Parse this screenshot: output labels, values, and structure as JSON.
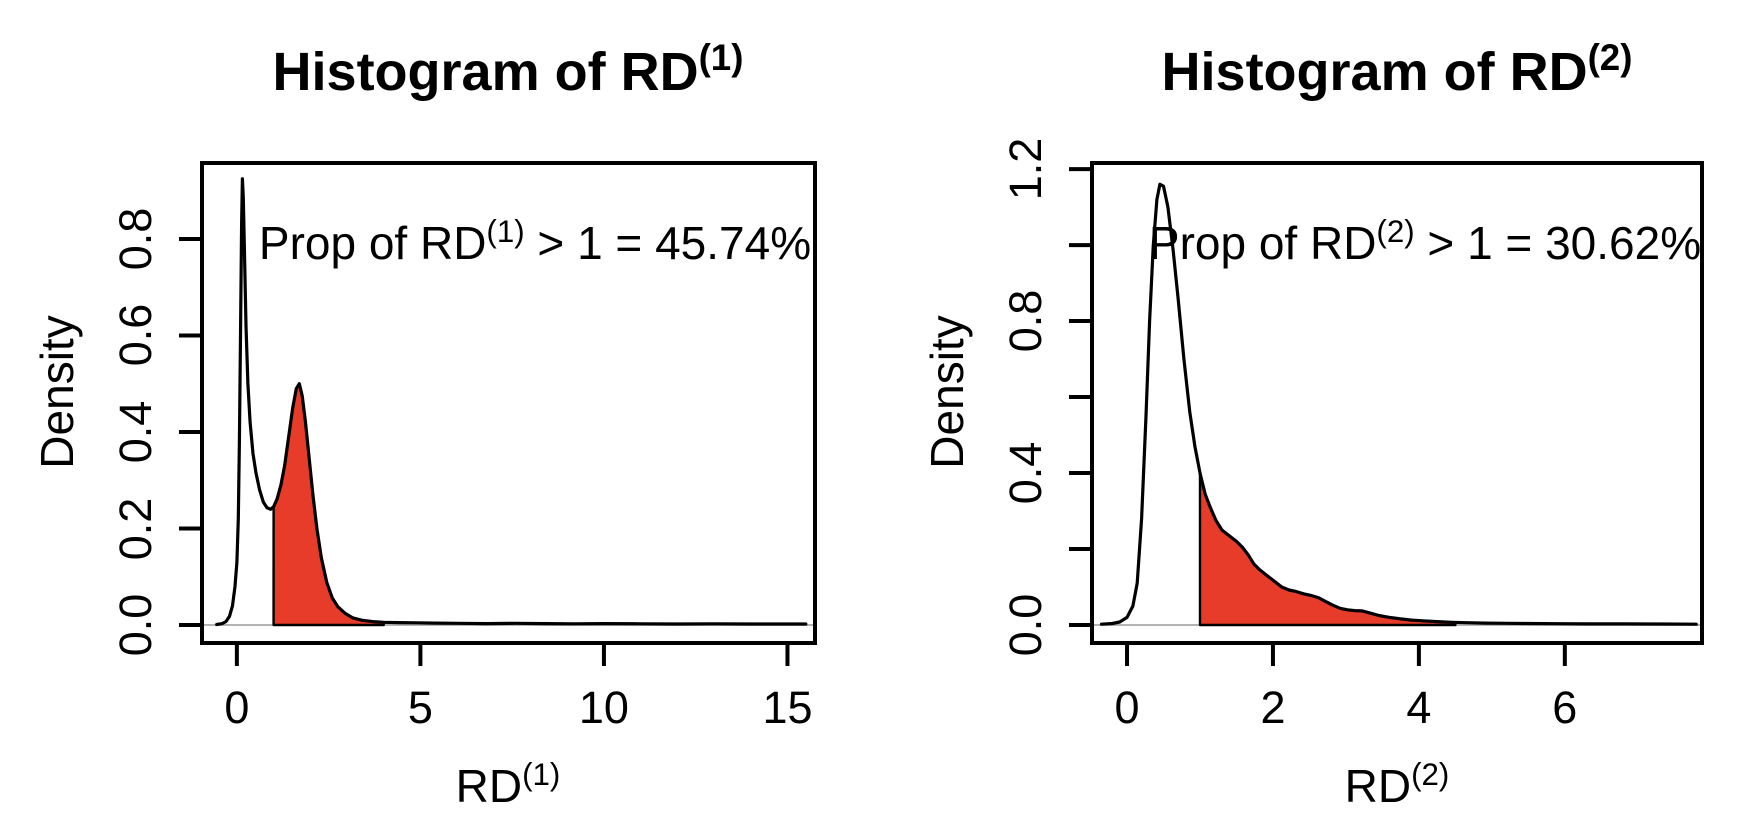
{
  "figure_title": "",
  "chart_data": [
    {
      "type": "area",
      "title": {
        "text": "Histogram of RD",
        "sup": "(1)"
      },
      "xlabel": {
        "text": "RD",
        "sup": "(1)"
      },
      "ylabel": "Density",
      "annotation": {
        "pre": "Prop of RD",
        "sup": "(1)",
        "post": " > 1 = 45.74%"
      },
      "proportion_gt_1_percent": 45.74,
      "threshold": 1,
      "xlim": [
        -0.95,
        15.75
      ],
      "ylim": [
        -0.0373,
        0.9575
      ],
      "x_ticks": [
        {
          "v": 0,
          "label": "0"
        },
        {
          "v": 5,
          "label": "5"
        },
        {
          "v": 10,
          "label": "10"
        },
        {
          "v": 15,
          "label": "15"
        }
      ],
      "y_ticks": [
        {
          "v": 0.0,
          "label": "0.0"
        },
        {
          "v": 0.2,
          "label": "0.2"
        },
        {
          "v": 0.4,
          "label": "0.4"
        },
        {
          "v": 0.6,
          "label": "0.6"
        },
        {
          "v": 0.8,
          "label": "0.8"
        }
      ],
      "grid": false,
      "legend": null,
      "fill_color": "#E83C2B",
      "line_color": "#000000",
      "zero_line_color": "#b3b3b3",
      "fill_from": 1.0,
      "fill_to": 4.0,
      "curve": [
        [
          -0.55,
          0.001
        ],
        [
          -0.4,
          0.003
        ],
        [
          -0.3,
          0.007
        ],
        [
          -0.2,
          0.018
        ],
        [
          -0.12,
          0.04
        ],
        [
          -0.05,
          0.08
        ],
        [
          0.0,
          0.13
        ],
        [
          0.04,
          0.22
        ],
        [
          0.07,
          0.38
        ],
        [
          0.1,
          0.6
        ],
        [
          0.13,
          0.83
        ],
        [
          0.15,
          0.925
        ],
        [
          0.175,
          0.885
        ],
        [
          0.21,
          0.76
        ],
        [
          0.25,
          0.62
        ],
        [
          0.3,
          0.5
        ],
        [
          0.36,
          0.42
        ],
        [
          0.44,
          0.355
        ],
        [
          0.52,
          0.315
        ],
        [
          0.62,
          0.28
        ],
        [
          0.72,
          0.255
        ],
        [
          0.82,
          0.243
        ],
        [
          0.92,
          0.24
        ],
        [
          1.0,
          0.245
        ],
        [
          1.1,
          0.262
        ],
        [
          1.2,
          0.29
        ],
        [
          1.3,
          0.33
        ],
        [
          1.42,
          0.395
        ],
        [
          1.52,
          0.45
        ],
        [
          1.62,
          0.49
        ],
        [
          1.7,
          0.5
        ],
        [
          1.78,
          0.475
        ],
        [
          1.87,
          0.42
        ],
        [
          1.97,
          0.345
        ],
        [
          2.07,
          0.27
        ],
        [
          2.18,
          0.2
        ],
        [
          2.3,
          0.14
        ],
        [
          2.45,
          0.088
        ],
        [
          2.6,
          0.056
        ],
        [
          2.75,
          0.038
        ],
        [
          2.95,
          0.024
        ],
        [
          3.15,
          0.015
        ],
        [
          3.4,
          0.01
        ],
        [
          3.7,
          0.007
        ],
        [
          4.0,
          0.0055
        ],
        [
          4.4,
          0.005
        ],
        [
          4.9,
          0.0045
        ],
        [
          5.4,
          0.004
        ],
        [
          6.0,
          0.0035
        ],
        [
          6.8,
          0.003
        ],
        [
          7.6,
          0.0035
        ],
        [
          8.4,
          0.003
        ],
        [
          9.2,
          0.0025
        ],
        [
          10.0,
          0.003
        ],
        [
          11.0,
          0.0025
        ],
        [
          12.0,
          0.002
        ],
        [
          13.0,
          0.0025
        ],
        [
          14.0,
          0.002
        ],
        [
          15.0,
          0.002
        ],
        [
          15.5,
          0.002
        ]
      ]
    },
    {
      "type": "area",
      "title": {
        "text": "Histogram of RD",
        "sup": "(2)"
      },
      "xlabel": {
        "text": "RD",
        "sup": "(2)"
      },
      "ylabel": "Density",
      "annotation": {
        "pre": "Prop of RD",
        "sup": "(2)",
        "post": " > 1 = 30.62%"
      },
      "proportion_gt_1_percent": 30.62,
      "threshold": 1,
      "xlim": [
        -0.48,
        7.88
      ],
      "ylim": [
        -0.0474,
        1.216
      ],
      "x_ticks": [
        {
          "v": 0,
          "label": "0"
        },
        {
          "v": 2,
          "label": "2"
        },
        {
          "v": 4,
          "label": "4"
        },
        {
          "v": 6,
          "label": "6"
        }
      ],
      "y_ticks": [
        {
          "v": 0.0,
          "label": "0.0"
        },
        {
          "v": 0.2,
          "label": ""
        },
        {
          "v": 0.4,
          "label": "0.4"
        },
        {
          "v": 0.6,
          "label": ""
        },
        {
          "v": 0.8,
          "label": "0.8"
        },
        {
          "v": 1.0,
          "label": ""
        },
        {
          "v": 1.2,
          "label": "1.2"
        }
      ],
      "grid": false,
      "legend": null,
      "fill_color": "#E83C2B",
      "line_color": "#000000",
      "zero_line_color": "#b3b3b3",
      "fill_from": 1.0,
      "fill_to": 4.5,
      "curve": [
        [
          -0.35,
          0.002
        ],
        [
          -0.2,
          0.004
        ],
        [
          -0.1,
          0.008
        ],
        [
          0.0,
          0.02
        ],
        [
          0.08,
          0.05
        ],
        [
          0.14,
          0.11
        ],
        [
          0.2,
          0.28
        ],
        [
          0.26,
          0.55
        ],
        [
          0.31,
          0.8
        ],
        [
          0.36,
          1.0
        ],
        [
          0.41,
          1.12
        ],
        [
          0.45,
          1.16
        ],
        [
          0.5,
          1.155
        ],
        [
          0.56,
          1.1
        ],
        [
          0.63,
          0.99
        ],
        [
          0.7,
          0.86
        ],
        [
          0.78,
          0.7
        ],
        [
          0.86,
          0.56
        ],
        [
          0.93,
          0.47
        ],
        [
          1.0,
          0.4
        ],
        [
          1.07,
          0.345
        ],
        [
          1.14,
          0.31
        ],
        [
          1.22,
          0.275
        ],
        [
          1.3,
          0.25
        ],
        [
          1.4,
          0.235
        ],
        [
          1.5,
          0.22
        ],
        [
          1.58,
          0.205
        ],
        [
          1.66,
          0.185
        ],
        [
          1.74,
          0.16
        ],
        [
          1.82,
          0.145
        ],
        [
          1.92,
          0.13
        ],
        [
          2.02,
          0.115
        ],
        [
          2.12,
          0.1
        ],
        [
          2.22,
          0.092
        ],
        [
          2.32,
          0.088
        ],
        [
          2.42,
          0.082
        ],
        [
          2.52,
          0.078
        ],
        [
          2.62,
          0.072
        ],
        [
          2.72,
          0.062
        ],
        [
          2.82,
          0.052
        ],
        [
          2.92,
          0.044
        ],
        [
          3.02,
          0.04
        ],
        [
          3.12,
          0.038
        ],
        [
          3.22,
          0.037
        ],
        [
          3.32,
          0.032
        ],
        [
          3.45,
          0.025
        ],
        [
          3.6,
          0.02
        ],
        [
          3.75,
          0.016
        ],
        [
          3.9,
          0.013
        ],
        [
          4.05,
          0.011
        ],
        [
          4.25,
          0.009
        ],
        [
          4.45,
          0.007
        ],
        [
          4.65,
          0.006
        ],
        [
          4.9,
          0.005
        ],
        [
          5.2,
          0.0045
        ],
        [
          5.5,
          0.004
        ],
        [
          5.9,
          0.0035
        ],
        [
          6.3,
          0.003
        ],
        [
          6.8,
          0.003
        ],
        [
          7.3,
          0.0025
        ],
        [
          7.8,
          0.002
        ]
      ]
    }
  ]
}
